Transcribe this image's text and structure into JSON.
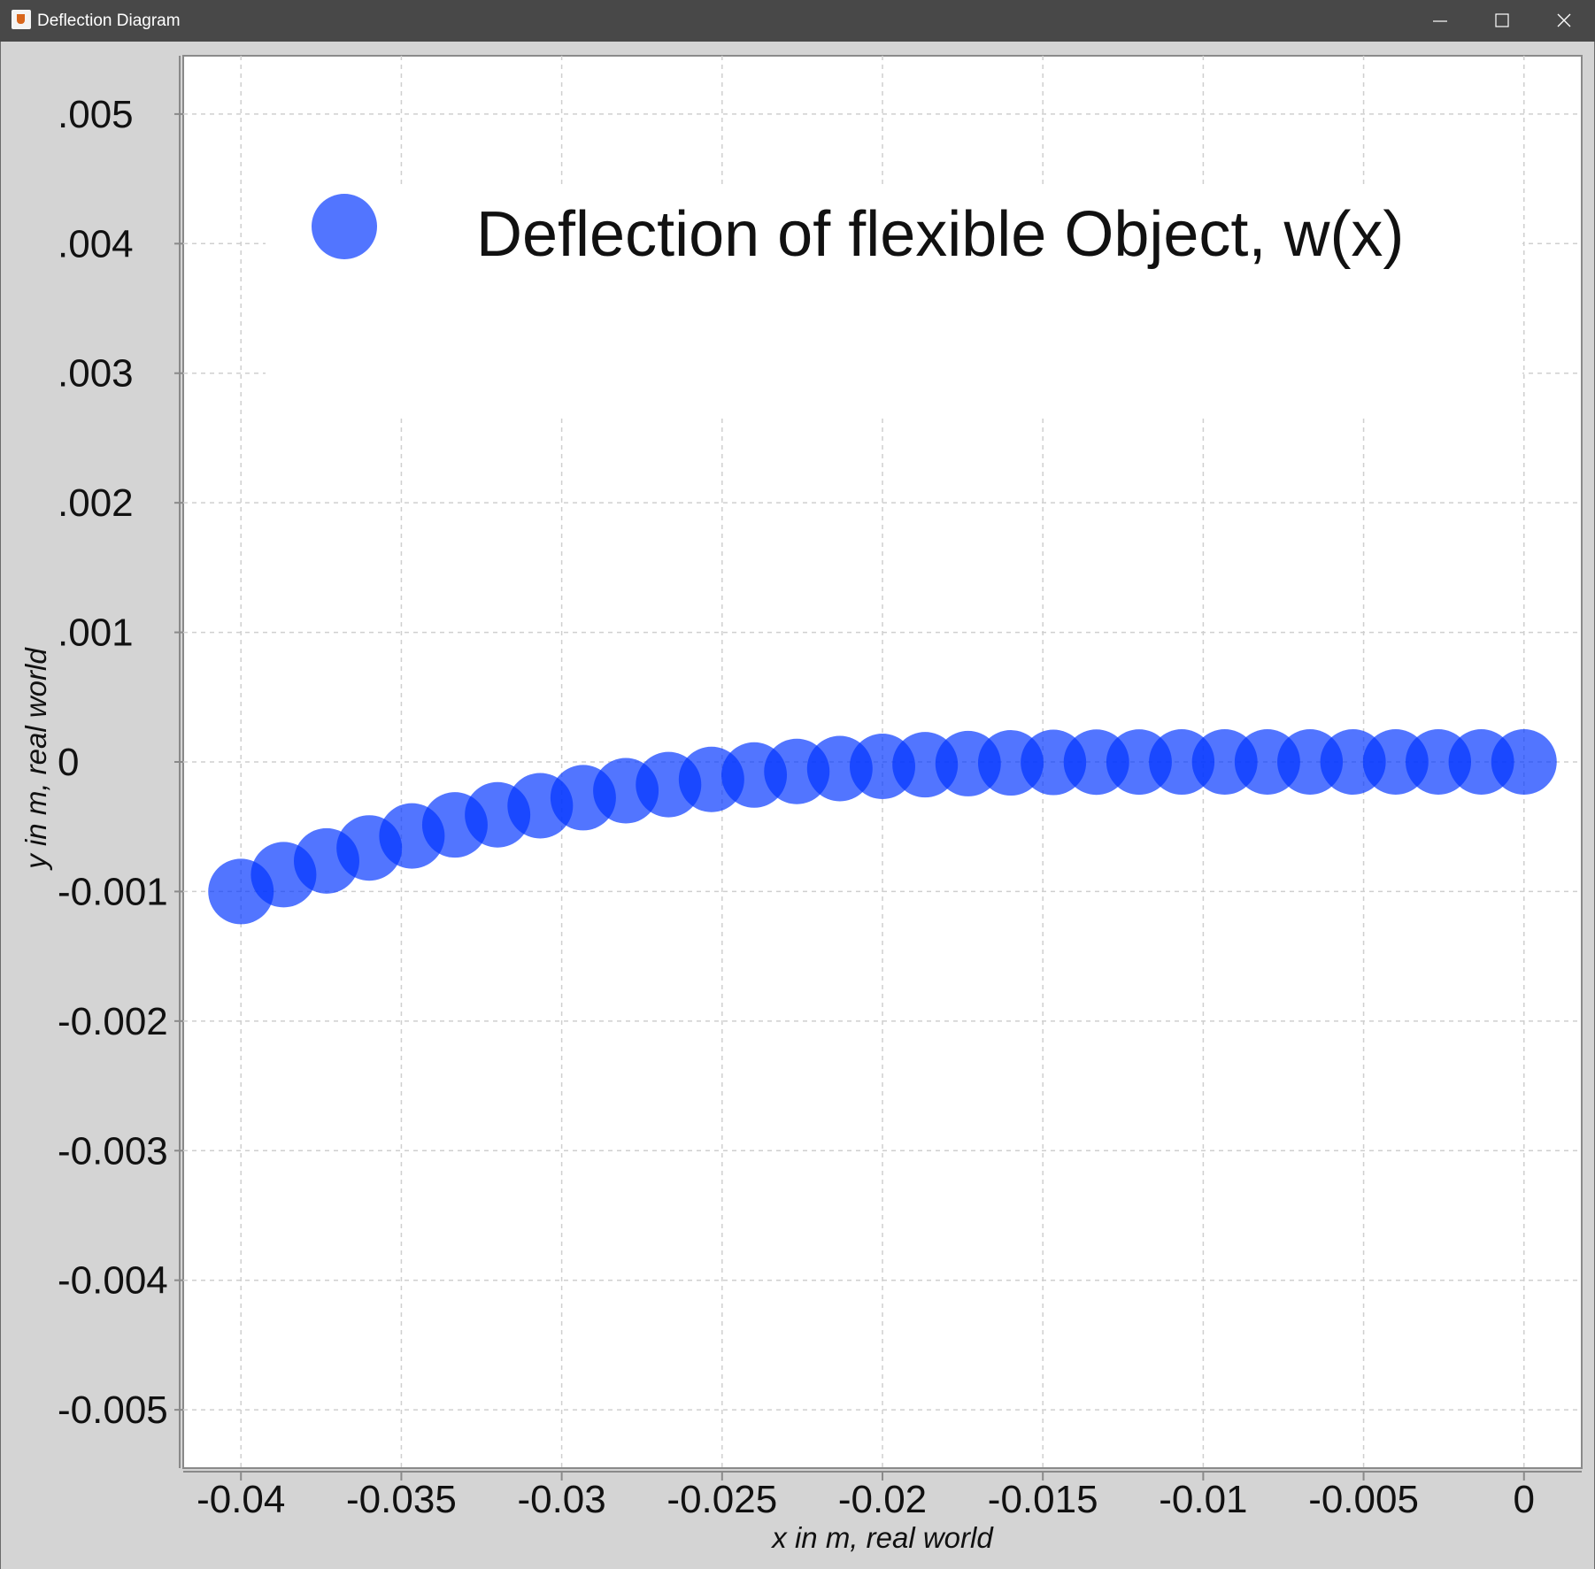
{
  "window": {
    "title": "Deflection Diagram",
    "icon": "java-app-icon",
    "controls": [
      "minimize-icon",
      "maximize-icon",
      "close-icon"
    ]
  },
  "chart_data": {
    "type": "scatter",
    "title": "",
    "xlabel": "x in m, real world",
    "ylabel": "y in m, real world",
    "xlim": [
      -0.0418,
      0.0018
    ],
    "ylim": [
      -0.00545,
      0.00545
    ],
    "grid": true,
    "legend_position": "top",
    "x_ticks": [
      {
        "value": -0.04,
        "label": "-0.04"
      },
      {
        "value": -0.035,
        "label": "-0.035"
      },
      {
        "value": -0.03,
        "label": "-0.03"
      },
      {
        "value": -0.025,
        "label": "-0.025"
      },
      {
        "value": -0.02,
        "label": "-0.02"
      },
      {
        "value": -0.015,
        "label": "-0.015"
      },
      {
        "value": -0.01,
        "label": "-0.01"
      },
      {
        "value": -0.005,
        "label": "-0.005"
      },
      {
        "value": 0,
        "label": "0"
      }
    ],
    "y_ticks": [
      {
        "value": 0.005,
        "label": ".005"
      },
      {
        "value": 0.004,
        "label": ".004"
      },
      {
        "value": 0.003,
        "label": ".003"
      },
      {
        "value": 0.002,
        "label": ".002"
      },
      {
        "value": 0.001,
        "label": ".001"
      },
      {
        "value": 0,
        "label": "0"
      },
      {
        "value": -0.001,
        "label": "-0.001"
      },
      {
        "value": -0.002,
        "label": "-0.002"
      },
      {
        "value": -0.003,
        "label": "-0.003"
      },
      {
        "value": -0.004,
        "label": "-0.004"
      },
      {
        "value": -0.005,
        "label": "-0.005"
      }
    ],
    "series": [
      {
        "name": "Deflection of flexible Object, w(x)",
        "color": "#0033ff",
        "marker_opacity": 0.68,
        "x": [
          -0.04,
          -0.03867,
          -0.03733,
          -0.036,
          -0.03467,
          -0.03333,
          -0.032,
          -0.03067,
          -0.02933,
          -0.028,
          -0.02667,
          -0.02533,
          -0.024,
          -0.02267,
          -0.02133,
          -0.02,
          -0.01867,
          -0.01733,
          -0.016,
          -0.01467,
          -0.01333,
          -0.012,
          -0.01067,
          -0.00933,
          -0.008,
          -0.00667,
          -0.00533,
          -0.004,
          -0.00267,
          -0.00133,
          0
        ],
        "y": [
          -0.001,
          -0.00087,
          -0.000764,
          -0.000664,
          -0.000571,
          -0.000486,
          -0.000408,
          -0.000338,
          -0.000276,
          -0.000222,
          -0.000175,
          -0.000135,
          -0.000101,
          -7.33e-05,
          -5.12e-05,
          -3.42e-05,
          -2.17e-05,
          -1.3e-05,
          -7.2e-06,
          -3.7e-06,
          -1.7e-06,
          -7e-07,
          -2e-07,
          -1e-07,
          0,
          0,
          0,
          0,
          0,
          0,
          0
        ]
      }
    ]
  }
}
